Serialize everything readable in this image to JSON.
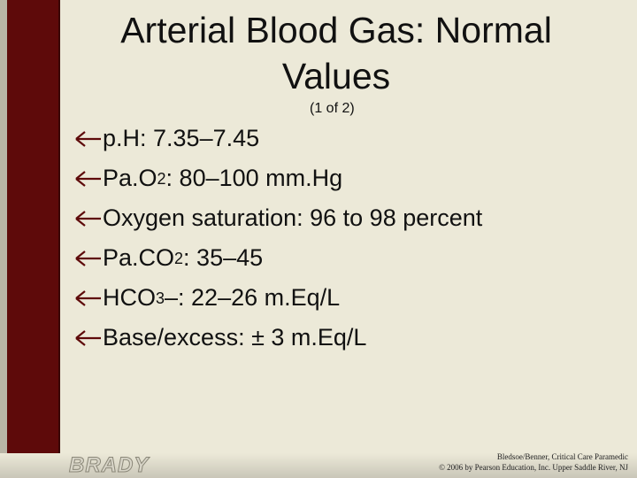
{
  "title": "Arterial Blood Gas: Normal Values",
  "subtitle": "(1 of 2)",
  "bullets": [
    {
      "segments": [
        {
          "text": "p.H: 7.35–7.45"
        }
      ]
    },
    {
      "segments": [
        {
          "text": "Pa.O"
        },
        {
          "sub": "2"
        },
        {
          "text": ": 80–100 mm.Hg"
        }
      ]
    },
    {
      "segments": [
        {
          "text": "Oxygen saturation: 96 to 98 percent"
        }
      ]
    },
    {
      "segments": [
        {
          "text": "Pa.CO"
        },
        {
          "sub": "2"
        },
        {
          "text": ": 35–45"
        }
      ]
    },
    {
      "segments": [
        {
          "text": "HCO"
        },
        {
          "sub": "3"
        },
        {
          "text": "–: 22–26 m.Eq/L"
        }
      ]
    },
    {
      "segments": [
        {
          "text": "Base/excess: ± 3 m.Eq/L"
        }
      ]
    }
  ],
  "footer": {
    "logo": "BRADY",
    "credit": [
      "Bledsoe/Benner, Critical Care Paramedic",
      "© 2006 by Pearson Education, Inc. Upper Saddle River, NJ"
    ]
  }
}
